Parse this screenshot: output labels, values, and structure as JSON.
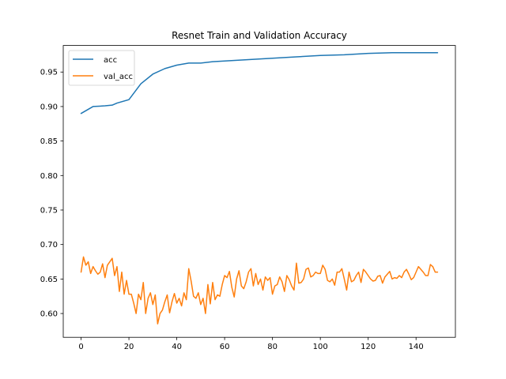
{
  "chart_data": {
    "type": "line",
    "title": "Resnet Train and Validation Accuracy",
    "xlabel": "",
    "ylabel": "",
    "xlim": [
      -7.45,
      156.45
    ],
    "ylim": [
      0.5655,
      0.9885
    ],
    "xticks": [
      0,
      20,
      40,
      60,
      80,
      100,
      120,
      140
    ],
    "xtick_labels": [
      "0",
      "20",
      "40",
      "60",
      "80",
      "100",
      "120",
      "140"
    ],
    "yticks": [
      0.6,
      0.65,
      0.7,
      0.75,
      0.8,
      0.85,
      0.9,
      0.95
    ],
    "ytick_labels": [
      "0.60",
      "0.65",
      "0.70",
      "0.75",
      "0.80",
      "0.85",
      "0.90",
      "0.95"
    ],
    "grid": false,
    "legend_position": "top-left",
    "series": [
      {
        "name": "acc",
        "color": "#1f77b4",
        "x": [
          0,
          5,
          10,
          13,
          15,
          20,
          25,
          30,
          35,
          40,
          45,
          50,
          55,
          60,
          70,
          80,
          90,
          100,
          110,
          120,
          130,
          140,
          149
        ],
        "values": [
          0.89,
          0.9,
          0.901,
          0.902,
          0.905,
          0.91,
          0.933,
          0.947,
          0.955,
          0.96,
          0.963,
          0.963,
          0.965,
          0.966,
          0.968,
          0.97,
          0.972,
          0.974,
          0.975,
          0.977,
          0.978,
          0.978,
          0.978
        ]
      },
      {
        "name": "val_acc",
        "color": "#ff7f0e",
        "x": [
          0,
          1,
          2,
          3,
          4,
          5,
          6,
          7,
          8,
          9,
          10,
          11,
          12,
          13,
          14,
          15,
          16,
          17,
          18,
          19,
          20,
          21,
          22,
          23,
          24,
          25,
          26,
          27,
          28,
          29,
          30,
          31,
          32,
          33,
          34,
          35,
          36,
          37,
          38,
          39,
          40,
          41,
          42,
          43,
          44,
          45,
          46,
          47,
          48,
          49,
          50,
          51,
          52,
          53,
          54,
          55,
          56,
          57,
          58,
          59,
          60,
          61,
          62,
          63,
          64,
          65,
          66,
          67,
          68,
          69,
          70,
          71,
          72,
          73,
          74,
          75,
          76,
          77,
          78,
          79,
          80,
          81,
          82,
          83,
          84,
          85,
          86,
          87,
          88,
          89,
          90,
          91,
          92,
          93,
          94,
          95,
          96,
          97,
          98,
          99,
          100,
          101,
          102,
          103,
          104,
          105,
          106,
          107,
          108,
          109,
          110,
          111,
          112,
          113,
          114,
          115,
          116,
          117,
          118,
          119,
          120,
          121,
          122,
          123,
          124,
          125,
          126,
          127,
          128,
          129,
          130,
          131,
          132,
          133,
          134,
          135,
          136,
          137,
          138,
          139,
          140,
          141,
          142,
          143,
          144,
          145,
          146,
          147,
          148,
          149
        ],
        "values": [
          0.66,
          0.682,
          0.67,
          0.675,
          0.658,
          0.668,
          0.662,
          0.657,
          0.66,
          0.672,
          0.652,
          0.67,
          0.675,
          0.68,
          0.655,
          0.668,
          0.632,
          0.66,
          0.628,
          0.648,
          0.628,
          0.628,
          0.615,
          0.6,
          0.628,
          0.62,
          0.645,
          0.6,
          0.622,
          0.63,
          0.613,
          0.627,
          0.585,
          0.6,
          0.605,
          0.617,
          0.627,
          0.601,
          0.617,
          0.629,
          0.615,
          0.622,
          0.611,
          0.63,
          0.62,
          0.665,
          0.647,
          0.625,
          0.622,
          0.63,
          0.613,
          0.622,
          0.6,
          0.642,
          0.614,
          0.645,
          0.62,
          0.627,
          0.625,
          0.642,
          0.655,
          0.652,
          0.661,
          0.638,
          0.624,
          0.65,
          0.662,
          0.64,
          0.636,
          0.646,
          0.66,
          0.665,
          0.64,
          0.658,
          0.642,
          0.65,
          0.634,
          0.653,
          0.648,
          0.652,
          0.628,
          0.64,
          0.642,
          0.653,
          0.646,
          0.632,
          0.655,
          0.649,
          0.64,
          0.634,
          0.673,
          0.644,
          0.645,
          0.65,
          0.664,
          0.666,
          0.653,
          0.655,
          0.66,
          0.658,
          0.658,
          0.67,
          0.664,
          0.648,
          0.646,
          0.65,
          0.641,
          0.66,
          0.66,
          0.665,
          0.65,
          0.634,
          0.66,
          0.646,
          0.648,
          0.655,
          0.66,
          0.645,
          0.664,
          0.66,
          0.655,
          0.65,
          0.647,
          0.648,
          0.654,
          0.655,
          0.644,
          0.653,
          0.657,
          0.661,
          0.65,
          0.652,
          0.651,
          0.655,
          0.652,
          0.66,
          0.664,
          0.657,
          0.649,
          0.652,
          0.66,
          0.668,
          0.664,
          0.66,
          0.655,
          0.655,
          0.671,
          0.668,
          0.66,
          0.66
        ]
      }
    ]
  }
}
